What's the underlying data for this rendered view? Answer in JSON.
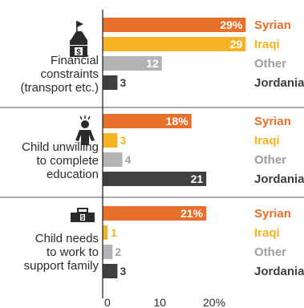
{
  "chart_data": {
    "type": "bar",
    "orientation": "horizontal",
    "x_axis": {
      "ticks": [
        0,
        10,
        20
      ],
      "tick_labels": [
        "0",
        "10",
        "20%"
      ],
      "xlim": [
        0,
        30
      ]
    },
    "grid": false,
    "groups": [
      {
        "label_lines": [
          "Financial",
          "constraints",
          "(transport etc.)"
        ],
        "icon": "school-money-icon",
        "bars": [
          {
            "series": "Syrian",
            "value": 29,
            "label": "29%"
          },
          {
            "series": "Iraqi",
            "value": 29,
            "label": "29"
          },
          {
            "series": "Other",
            "value": 12,
            "label": "12"
          },
          {
            "series": "Jordanian",
            "value": 3,
            "label": "3"
          }
        ]
      },
      {
        "label_lines": [
          "Child unwilling",
          "to complete",
          "education"
        ],
        "icon": "frustrated-child-icon",
        "bars": [
          {
            "series": "Syrian",
            "value": 18,
            "label": "18%"
          },
          {
            "series": "Iraqi",
            "value": 3,
            "label": "3"
          },
          {
            "series": "Other",
            "value": 4,
            "label": "4"
          },
          {
            "series": "Jordanian",
            "value": 21,
            "label": "21"
          }
        ]
      },
      {
        "label_lines": [
          "Child needs",
          "to work to",
          "support family"
        ],
        "icon": "toolbox-money-icon",
        "bars": [
          {
            "series": "Syrian",
            "value": 21,
            "label": "21%"
          },
          {
            "series": "Iraqi",
            "value": 1,
            "label": "1"
          },
          {
            "series": "Other",
            "value": 2,
            "label": "2"
          },
          {
            "series": "Jordanian",
            "value": 3,
            "label": "3"
          }
        ]
      }
    ],
    "series": [
      {
        "name": "Syrian",
        "color": "#e8702a",
        "text_color": "#e8702a"
      },
      {
        "name": "Iraqi",
        "color": "#f5b323",
        "text_color": "#f5b323"
      },
      {
        "name": "Other",
        "color": "#b3b3b3",
        "text_color": "#9e9e9e"
      },
      {
        "name": "Jordanian",
        "color": "#3f3f3f",
        "text_color": "#3f3f3f"
      }
    ]
  }
}
